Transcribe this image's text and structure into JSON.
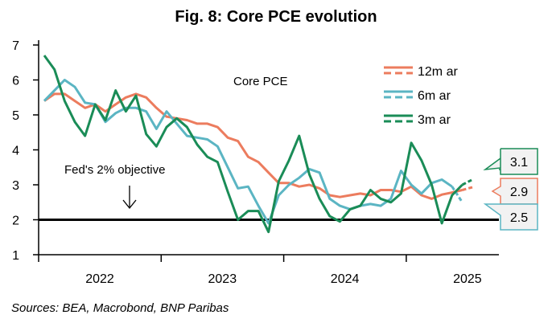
{
  "chart_data": {
    "type": "line",
    "title": "Fig. 8: Core PCE evolution",
    "subtitle": "Core PCE",
    "source": "Sources: BEA, Macrobond, BNP Paribas",
    "annotation": "Fed's 2% objective",
    "reference_line": 2,
    "ylim": [
      1,
      7
    ],
    "yticks": [
      "1",
      "2",
      "3",
      "4",
      "5",
      "6",
      "7"
    ],
    "xticks": [
      "2022",
      "2023",
      "2024",
      "2025"
    ],
    "x_start": "2022-01",
    "frequency": "monthly",
    "legend": {
      "placement": "top-right"
    },
    "series": [
      {
        "name": "12m ar",
        "color": "#ec7c5e",
        "end_label": "2.9",
        "values": [
          5.4,
          5.6,
          5.6,
          5.4,
          5.2,
          5.3,
          5.1,
          5.3,
          5.5,
          5.6,
          5.5,
          5.2,
          4.95,
          4.9,
          4.85,
          4.75,
          4.75,
          4.65,
          4.35,
          4.25,
          3.8,
          3.65,
          3.35,
          3.05,
          3.05,
          2.95,
          3.0,
          2.9,
          2.7,
          2.65,
          2.7,
          2.75,
          2.7,
          2.85,
          2.85,
          2.8,
          2.95,
          2.7,
          2.6,
          2.72,
          2.78,
          2.85,
          2.93
        ]
      },
      {
        "name": "6m ar",
        "color": "#5bb5c3",
        "end_label": "2.5",
        "values": [
          5.4,
          5.7,
          6.0,
          5.8,
          5.35,
          5.3,
          4.8,
          5.05,
          5.2,
          5.2,
          5.1,
          4.6,
          5.1,
          4.75,
          4.4,
          4.35,
          4.3,
          4.1,
          3.5,
          2.9,
          2.95,
          2.4,
          1.9,
          2.7,
          3.0,
          3.2,
          3.45,
          3.35,
          2.6,
          2.4,
          2.3,
          2.4,
          2.45,
          2.4,
          2.6,
          3.4,
          3.0,
          2.75,
          3.05,
          3.15,
          2.95,
          2.5
        ]
      },
      {
        "name": "3m ar",
        "color": "#1a8c57",
        "end_label": "3.1",
        "values": [
          6.7,
          6.3,
          5.4,
          4.8,
          4.4,
          5.3,
          4.85,
          5.7,
          5.1,
          5.55,
          4.45,
          4.1,
          4.65,
          4.9,
          4.65,
          4.15,
          3.8,
          3.65,
          2.8,
          2.0,
          2.25,
          2.25,
          1.65,
          3.1,
          3.7,
          4.4,
          3.3,
          2.6,
          2.1,
          1.95,
          2.3,
          2.4,
          2.85,
          2.6,
          2.5,
          2.75,
          4.2,
          3.7,
          3.0,
          1.9,
          2.7,
          3.0,
          3.15
        ]
      }
    ]
  }
}
